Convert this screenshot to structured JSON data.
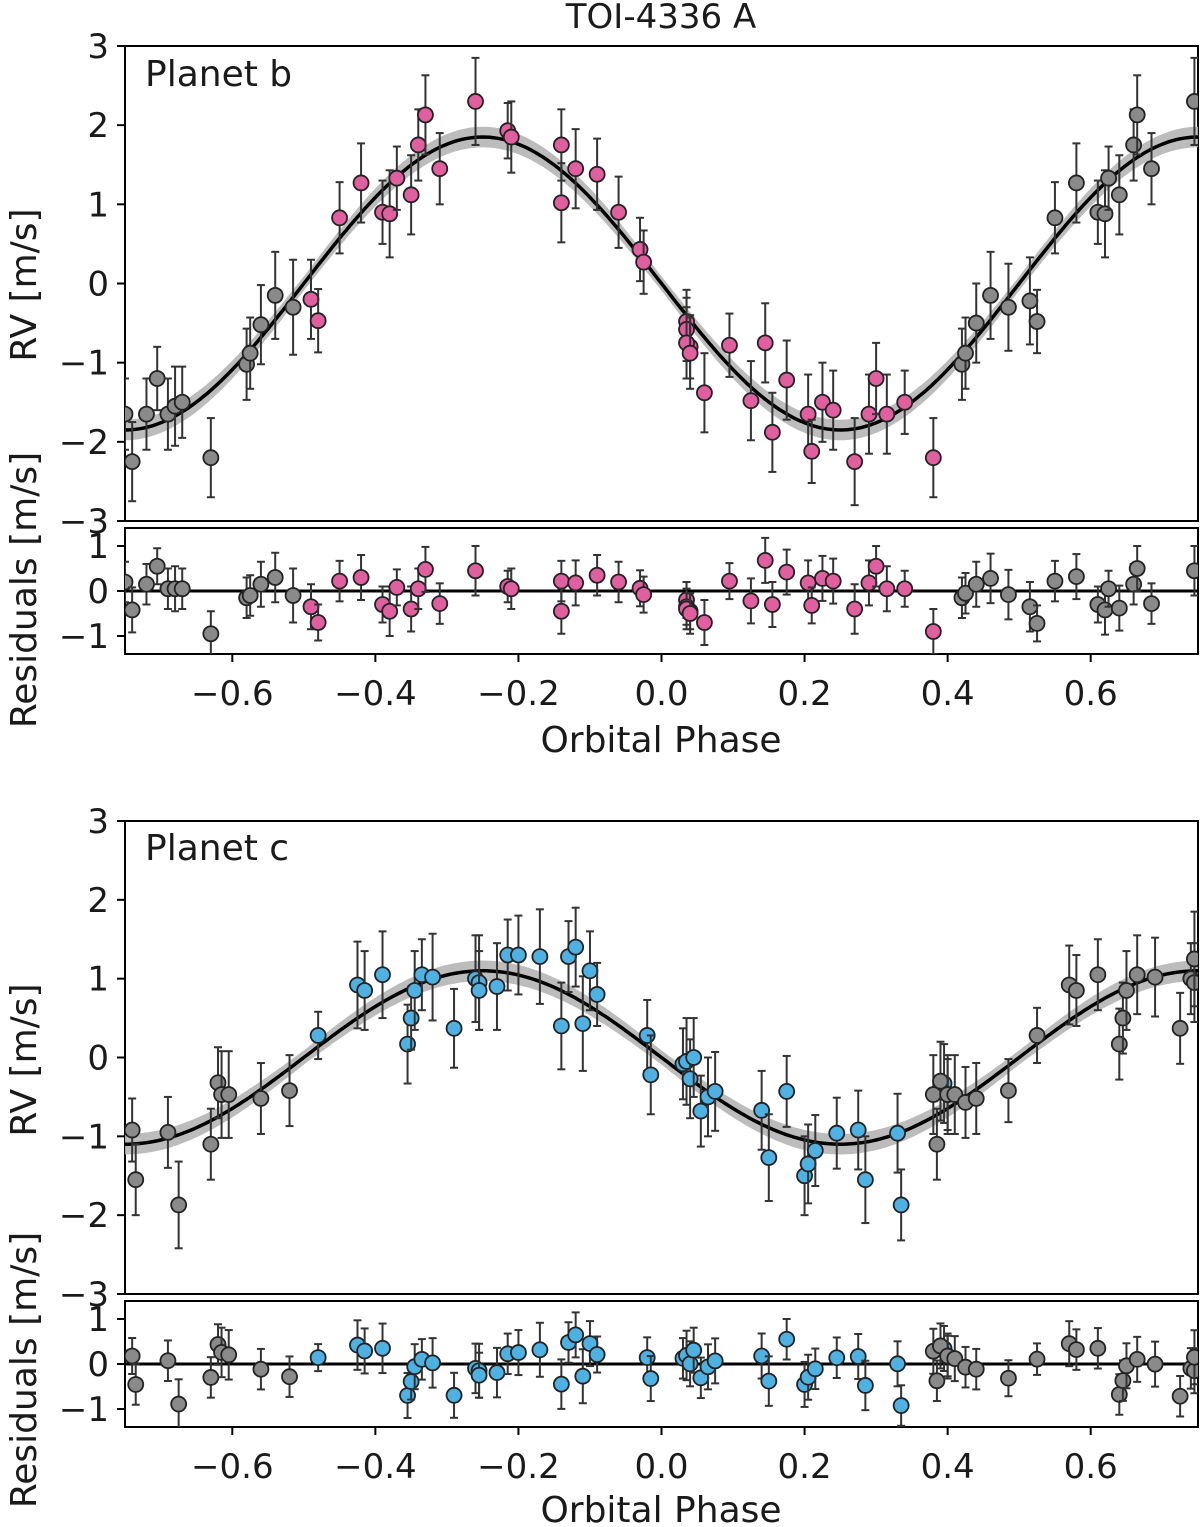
{
  "figure_title": "TOI-4336 A",
  "colors": {
    "b": "#e0609f",
    "c": "#4fb0e2",
    "gray": "#8a8a8a",
    "model": "#000000",
    "band": "#b5b5b5"
  },
  "chart_data": [
    {
      "type": "scatter",
      "panel_label": "Planet b",
      "ylabel": "RV [m/s]",
      "residuals_ylabel": "Residuals [m/s]",
      "xlabel": "Orbital Phase",
      "xlim": [
        -0.75,
        0.75
      ],
      "ylim": [
        -3,
        3
      ],
      "residuals_ylim": [
        -1.4,
        1.4
      ],
      "xticks": [
        "-0.6",
        "-0.4",
        "-0.2",
        "0.0",
        "0.2",
        "0.4",
        "0.6"
      ],
      "yticks": [
        "-3",
        "-2",
        "-1",
        "0",
        "1",
        "2",
        "3"
      ],
      "residuals_yticks": [
        "-1",
        "0",
        "1"
      ],
      "model": {
        "amplitude": 1.85,
        "phase_of_maximum": -0.25
      },
      "series": [
        {
          "color": "pink",
          "x": [
            -0.49,
            -0.48,
            -0.45,
            -0.42,
            -0.39,
            -0.38,
            -0.37,
            -0.35,
            -0.34,
            -0.33,
            -0.31,
            -0.26,
            -0.215,
            -0.21,
            -0.14,
            -0.14,
            -0.12,
            -0.09,
            -0.06,
            -0.03,
            -0.025,
            0.035,
            0.035,
            0.04,
            0.035,
            0.04,
            0.06,
            0.095,
            0.125,
            0.145,
            0.155,
            0.175,
            0.205,
            0.21,
            0.225,
            0.24,
            0.27,
            0.29,
            0.3,
            0.315,
            0.34,
            0.38
          ],
          "y": [
            -0.2,
            -0.47,
            0.83,
            1.27,
            0.9,
            0.88,
            1.33,
            1.12,
            1.75,
            2.13,
            1.45,
            2.3,
            1.93,
            1.85,
            1.75,
            1.02,
            1.45,
            1.38,
            0.9,
            0.43,
            0.27,
            -0.48,
            -0.58,
            -0.8,
            -0.75,
            -0.88,
            -1.38,
            -0.78,
            -1.48,
            -0.75,
            -1.88,
            -1.22,
            -1.65,
            -2.12,
            -1.5,
            -1.6,
            -2.25,
            -1.65,
            -1.2,
            -1.65,
            -1.5,
            -2.2
          ],
          "err": [
            0.5,
            0.4,
            0.45,
            0.5,
            0.4,
            0.55,
            0.4,
            0.5,
            0.45,
            0.5,
            0.45,
            0.55,
            0.35,
            0.45,
            0.45,
            0.5,
            0.5,
            0.45,
            0.45,
            0.4,
            0.4,
            0.4,
            0.4,
            0.4,
            0.45,
            0.45,
            0.5,
            0.4,
            0.5,
            0.5,
            0.5,
            0.5,
            0.5,
            0.4,
            0.5,
            0.5,
            0.55,
            0.5,
            0.45,
            0.5,
            0.4,
            0.5
          ],
          "residuals": [
            -0.35,
            -0.7,
            0.22,
            0.3,
            -0.3,
            -0.45,
            0.08,
            -0.4,
            0.05,
            0.48,
            -0.28,
            0.45,
            0.1,
            0.05,
            0.22,
            -0.45,
            0.18,
            0.35,
            0.2,
            0.06,
            -0.08,
            -0.2,
            -0.35,
            -0.45,
            -0.4,
            -0.5,
            -0.7,
            0.22,
            -0.22,
            0.68,
            -0.3,
            0.42,
            0.18,
            -0.32,
            0.28,
            0.22,
            -0.4,
            0.18,
            0.55,
            0.05,
            0.05,
            -0.9
          ]
        },
        {
          "color": "gray",
          "x": [
            -0.75,
            -0.74,
            -0.72,
            -0.705,
            -0.69,
            -0.68,
            -0.67,
            -0.63,
            -0.58,
            -0.575,
            -0.56,
            -0.54,
            -0.515,
            0.42,
            0.425,
            0.44,
            0.46,
            0.485,
            0.515,
            0.525,
            0.55,
            0.58,
            0.61,
            0.62,
            0.625,
            0.64,
            0.66,
            0.665,
            0.685,
            0.745
          ],
          "y": [
            -1.65,
            -2.25,
            -1.65,
            -1.2,
            -1.65,
            -1.55,
            -1.5,
            -2.2,
            -1.02,
            -0.88,
            -0.52,
            -0.15,
            -0.3,
            -1.02,
            -0.88,
            -0.5,
            -0.15,
            -0.3,
            -0.22,
            -0.48,
            0.83,
            1.27,
            0.9,
            0.88,
            1.33,
            1.12,
            1.75,
            2.13,
            1.45,
            2.3
          ],
          "err": [
            0.45,
            0.5,
            0.45,
            0.4,
            0.45,
            0.5,
            0.45,
            0.5,
            0.45,
            0.45,
            0.5,
            0.55,
            0.6,
            0.45,
            0.45,
            0.5,
            0.55,
            0.55,
            0.55,
            0.4,
            0.45,
            0.5,
            0.4,
            0.55,
            0.4,
            0.5,
            0.45,
            0.5,
            0.45,
            0.55
          ],
          "residuals": [
            0.2,
            -0.42,
            0.15,
            0.55,
            0.05,
            0.05,
            0.05,
            -0.95,
            -0.15,
            -0.1,
            0.15,
            0.3,
            -0.1,
            -0.15,
            -0.05,
            0.15,
            0.28,
            -0.08,
            -0.35,
            -0.72,
            0.22,
            0.32,
            -0.3,
            -0.42,
            0.05,
            -0.38,
            0.15,
            0.5,
            -0.28,
            0.45
          ]
        }
      ]
    },
    {
      "type": "scatter",
      "panel_label": "Planet c",
      "ylabel": "RV [m/s]",
      "residuals_ylabel": "Residuals [m/s]",
      "xlabel": "Orbital Phase",
      "xlim": [
        -0.75,
        0.75
      ],
      "ylim": [
        -3,
        3
      ],
      "residuals_ylim": [
        -1.4,
        1.4
      ],
      "xticks": [
        "-0.6",
        "-0.4",
        "-0.2",
        "0.0",
        "0.2",
        "0.4",
        "0.6"
      ],
      "yticks": [
        "-3",
        "-2",
        "-1",
        "0",
        "1",
        "2",
        "3"
      ],
      "residuals_yticks": [
        "-1",
        "0",
        "1"
      ],
      "model": {
        "amplitude": 1.1,
        "phase_of_maximum": -0.25
      },
      "series": [
        {
          "color": "blue",
          "x": [
            -0.48,
            -0.425,
            -0.415,
            -0.39,
            -0.355,
            -0.35,
            -0.345,
            -0.335,
            -0.32,
            -0.29,
            -0.26,
            -0.255,
            -0.255,
            -0.23,
            -0.215,
            -0.2,
            -0.17,
            -0.14,
            -0.13,
            -0.12,
            -0.11,
            -0.1,
            -0.09,
            -0.02,
            -0.015,
            0.03,
            0.035,
            0.04,
            0.045,
            0.055,
            0.065,
            0.075,
            0.14,
            0.15,
            0.175,
            0.2,
            0.205,
            0.215,
            0.245,
            0.275,
            0.285,
            0.33,
            0.335,
            0.395,
            0.4
          ],
          "y": [
            0.28,
            0.92,
            0.85,
            1.05,
            0.17,
            0.5,
            0.85,
            1.05,
            1.02,
            0.37,
            1.0,
            0.95,
            0.85,
            0.9,
            1.3,
            1.3,
            1.28,
            0.4,
            1.28,
            1.4,
            0.43,
            1.1,
            0.8,
            0.28,
            -0.22,
            -0.08,
            -0.05,
            -0.27,
            0.0,
            -0.68,
            -0.5,
            -0.43,
            -0.67,
            -1.27,
            -0.43,
            -1.5,
            -1.35,
            -1.18,
            -0.96,
            -0.92,
            -1.55,
            -0.96,
            -1.87,
            -0.33,
            -0.47
          ],
          "err": [
            0.3,
            0.55,
            0.5,
            0.55,
            0.5,
            0.4,
            0.5,
            0.45,
            0.55,
            0.5,
            0.55,
            0.6,
            0.5,
            0.55,
            0.45,
            0.5,
            0.6,
            0.55,
            0.45,
            0.5,
            0.6,
            0.5,
            0.4,
            0.45,
            0.5,
            0.45,
            0.55,
            0.5,
            0.5,
            0.45,
            0.5,
            0.5,
            0.5,
            0.55,
            0.45,
            0.5,
            0.5,
            0.45,
            0.45,
            0.5,
            0.55,
            0.5,
            0.45,
            0.5,
            0.45
          ]
        },
        {
          "color": "gray",
          "x": [
            -0.74,
            -0.735,
            -0.69,
            -0.675,
            -0.63,
            -0.62,
            -0.615,
            -0.605,
            -0.56,
            -0.52,
            0.38,
            0.385,
            0.39,
            0.4,
            0.41,
            0.425,
            0.44,
            0.485,
            0.525,
            0.57,
            0.58,
            0.61,
            0.64,
            0.645,
            0.65,
            0.665,
            0.69,
            0.725,
            0.74,
            0.745,
            0.745
          ],
          "y": [
            -0.92,
            -1.55,
            -0.95,
            -1.87,
            -1.1,
            -0.32,
            -0.47,
            -0.47,
            -0.52,
            -0.42,
            -0.47,
            -1.1,
            -0.3,
            -0.47,
            -0.47,
            -0.57,
            -0.52,
            -0.42,
            0.28,
            0.92,
            0.85,
            1.05,
            0.17,
            0.5,
            0.85,
            1.05,
            1.02,
            0.37,
            1.0,
            0.95,
            1.25
          ],
          "err": [
            0.4,
            0.45,
            0.45,
            0.55,
            0.45,
            0.45,
            0.55,
            0.55,
            0.45,
            0.45,
            0.5,
            0.45,
            0.5,
            0.5,
            0.5,
            0.45,
            0.45,
            0.4,
            0.35,
            0.5,
            0.45,
            0.45,
            0.45,
            0.45,
            0.5,
            0.5,
            0.5,
            0.45,
            0.45,
            0.5,
            0.6
          ]
        }
      ]
    }
  ]
}
